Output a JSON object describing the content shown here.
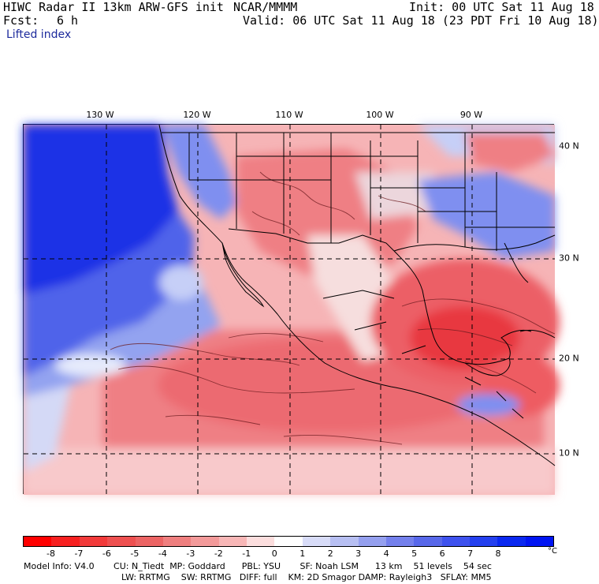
{
  "header": {
    "title_left": "HIWC Radar II 13km ARW-GFS init",
    "source": "NCAR/MMMM",
    "init": "Init: 00 UTC Sat 11 Aug 18",
    "fcst_label": "Fcst:",
    "fcst_value": "6 h",
    "valid": "Valid: 06 UTC Sat 11 Aug 18 (23 PDT Fri 10 Aug 18)",
    "field": "Lifted index"
  },
  "map": {
    "lon_labels": [
      "130 W",
      "120 W",
      "110 W",
      "100 W",
      "90 W"
    ],
    "lat_labels": [
      "40 N",
      "30 N",
      "20 N",
      "10 N"
    ],
    "colors": {
      "ocean_stable": "#1d33e6",
      "neutral": "#fbe7e7",
      "unstable": "#ef6f73",
      "very_unstable": "#e8393f",
      "land_line": "#000000"
    }
  },
  "colorbar": {
    "ticks": [
      "-8",
      "-7",
      "-6",
      "-5",
      "-4",
      "-3",
      "-2",
      "-1",
      "0",
      "1",
      "2",
      "3",
      "4",
      "5",
      "6",
      "7",
      "8"
    ],
    "unit": "°C",
    "colors": [
      "#ff0000",
      "#f72020",
      "#f23a3a",
      "#ee5050",
      "#ec6464",
      "#ef7f7f",
      "#f39a9a",
      "#f8b7b7",
      "#fcdede",
      "#ffffff",
      "#d8dcf8",
      "#b7bff2",
      "#95a0ef",
      "#7480ec",
      "#5868ea",
      "#3e52ee",
      "#2440ef",
      "#0a28f0",
      "#0014f2"
    ]
  },
  "footer": {
    "line1": "Model Info: V4.0       CU: N_Tiedt  MP: Goddard      PBL: YSU       SF: Noah LSM      13 km    51 levels    54 sec",
    "line2": "LW: RRTMG    SW: RRTMG   DIFF: full    KM: 2D Smagor DAMP: Rayleigh3   SFLAY: MM5"
  }
}
